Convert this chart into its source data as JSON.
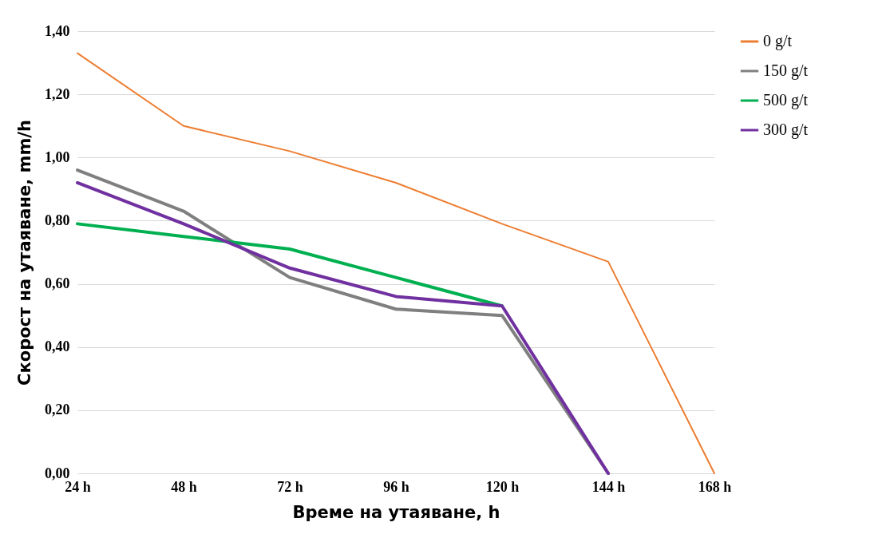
{
  "chart_data": {
    "type": "line",
    "xlabel": "Време на утаяване, h",
    "ylabel": "Скорост на утаяване, mm/h",
    "categories": [
      "24 h",
      "48 h",
      "72 h",
      "96 h",
      "120 h",
      "144 h",
      "168 h"
    ],
    "series": [
      {
        "name": "0 g/t",
        "color": "#ed7d31",
        "values": [
          1.33,
          1.1,
          1.02,
          0.92,
          0.79,
          0.67,
          0
        ]
      },
      {
        "name": "150 g/t",
        "color": "#7f7f7f",
        "values": [
          0.96,
          0.83,
          0.62,
          0.52,
          0.5,
          0,
          null
        ]
      },
      {
        "name": "500 g/t",
        "color": "#00b050",
        "values": [
          0.79,
          0.75,
          0.71,
          0.62,
          0.53,
          null,
          null
        ]
      },
      {
        "name": "300 g/t",
        "color": "#7030a0",
        "values": [
          0.92,
          0.79,
          0.65,
          0.56,
          0.53,
          0,
          null
        ]
      }
    ],
    "ylim": [
      0,
      1.4
    ],
    "yticks": [
      {
        "value": 0,
        "label": "0,00"
      },
      {
        "value": 0.2,
        "label": "0,20"
      },
      {
        "value": 0.4,
        "label": "0,40"
      },
      {
        "value": 0.6,
        "label": "0,60"
      },
      {
        "value": 0.8,
        "label": "0,80"
      },
      {
        "value": 1.0,
        "label": "1,00"
      },
      {
        "value": 1.2,
        "label": "1,20"
      },
      {
        "value": 1.4,
        "label": "1,40"
      }
    ],
    "grid": "y",
    "legend": "right",
    "marker": "none",
    "line_style": "solid"
  }
}
